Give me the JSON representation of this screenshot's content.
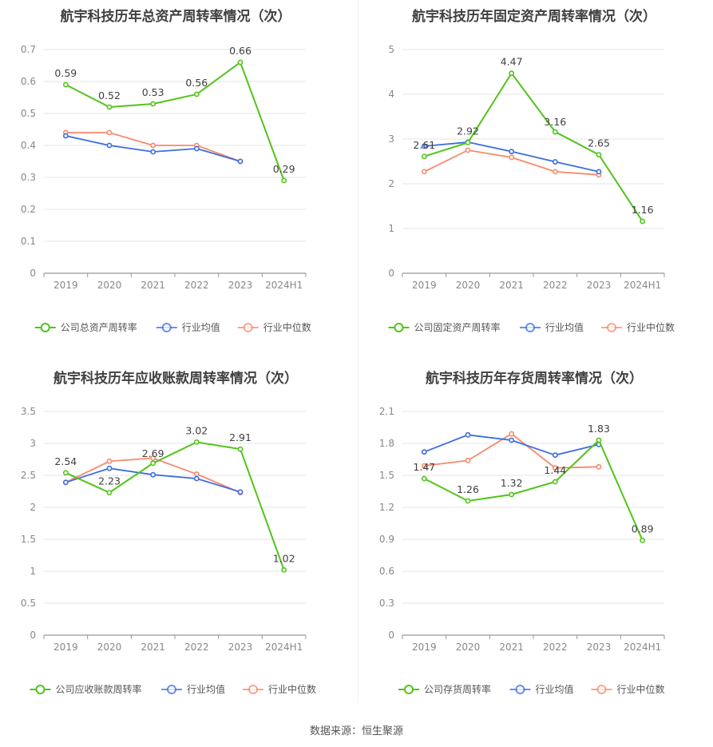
{
  "source": "数据来源：恒生聚源",
  "legend_common": [
    "行业均值",
    "行业中位数"
  ],
  "colors": {
    "company": "#52c41a",
    "avg": "#3b6ee0",
    "median": "#f7896a",
    "grid": "#e6e6e6",
    "axis": "#999999"
  },
  "chart_data": [
    {
      "type": "line",
      "title": "航宇科技历年总资产周转率情况（次）",
      "categories": [
        "2019",
        "2020",
        "2021",
        "2022",
        "2023",
        "2024H1"
      ],
      "yticks": [
        "0",
        "0.1",
        "0.2",
        "0.3",
        "0.4",
        "0.5",
        "0.6",
        "0.7"
      ],
      "ylim": [
        0,
        0.7
      ],
      "series": [
        {
          "name": "公司总资产周转率",
          "values": [
            0.59,
            0.52,
            0.53,
            0.56,
            0.66,
            0.29
          ],
          "labels": [
            "0.59",
            "0.52",
            "0.53",
            "0.56",
            "0.66",
            "0.29"
          ]
        },
        {
          "name": "行业均值",
          "values": [
            0.43,
            0.4,
            0.38,
            0.39,
            0.35,
            null
          ]
        },
        {
          "name": "行业中位数",
          "values": [
            0.44,
            0.44,
            0.4,
            0.4,
            0.35,
            null
          ]
        }
      ]
    },
    {
      "type": "line",
      "title": "航宇科技历年固定资产周转率情况（次）",
      "categories": [
        "2019",
        "2020",
        "2021",
        "2022",
        "2023",
        "2024H1"
      ],
      "yticks": [
        "0",
        "1",
        "2",
        "3",
        "4",
        "5"
      ],
      "ylim": [
        0,
        5
      ],
      "series": [
        {
          "name": "公司固定资产周转率",
          "values": [
            2.61,
            2.92,
            4.47,
            3.16,
            2.65,
            1.16
          ],
          "labels": [
            "2.61",
            "2.92",
            "4.47",
            "3.16",
            "2.65",
            "1.16"
          ]
        },
        {
          "name": "行业均值",
          "values": [
            2.84,
            2.93,
            2.72,
            2.49,
            2.27,
            null
          ]
        },
        {
          "name": "行业中位数",
          "values": [
            2.27,
            2.75,
            2.59,
            2.27,
            2.2,
            null
          ]
        }
      ]
    },
    {
      "type": "line",
      "title": "航宇科技历年应收账款周转率情况（次）",
      "categories": [
        "2019",
        "2020",
        "2021",
        "2022",
        "2023",
        "2024H1"
      ],
      "yticks": [
        "0",
        "0.5",
        "1",
        "1.5",
        "2",
        "2.5",
        "3",
        "3.5"
      ],
      "ylim": [
        0,
        3.5
      ],
      "series": [
        {
          "name": "公司应收账款周转率",
          "values": [
            2.54,
            2.23,
            2.69,
            3.02,
            2.91,
            1.02
          ],
          "labels": [
            "2.54",
            "2.23",
            "2.69",
            "3.02",
            "2.91",
            "1.02"
          ]
        },
        {
          "name": "行业均值",
          "values": [
            2.39,
            2.61,
            2.51,
            2.45,
            2.24,
            null
          ]
        },
        {
          "name": "行业中位数",
          "values": [
            2.39,
            2.72,
            2.77,
            2.52,
            2.23,
            null
          ]
        }
      ]
    },
    {
      "type": "line",
      "title": "航宇科技历年存货周转率情况（次）",
      "categories": [
        "2019",
        "2020",
        "2021",
        "2022",
        "2023",
        "2024H1"
      ],
      "yticks": [
        "0",
        "0.3",
        "0.6",
        "0.9",
        "1.2",
        "1.5",
        "1.8",
        "2.1"
      ],
      "ylim": [
        0,
        2.1
      ],
      "series": [
        {
          "name": "公司存货周转率",
          "values": [
            1.47,
            1.26,
            1.32,
            1.44,
            1.83,
            0.89
          ],
          "labels": [
            "1.47",
            "1.26",
            "1.32",
            "1.44",
            "1.83",
            "0.89"
          ]
        },
        {
          "name": "行业均值",
          "values": [
            1.72,
            1.88,
            1.83,
            1.69,
            1.79,
            null
          ]
        },
        {
          "name": "行业中位数",
          "values": [
            1.59,
            1.64,
            1.89,
            1.57,
            1.58,
            null
          ]
        }
      ]
    }
  ]
}
